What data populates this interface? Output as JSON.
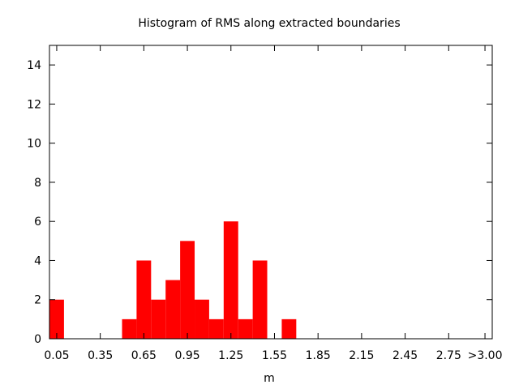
{
  "chart_data": {
    "type": "bar",
    "title": "Histogram of RMS along extracted boundaries",
    "xlabel": "m",
    "ylabel": "",
    "ylim": [
      0,
      15
    ],
    "xlim": [
      0,
      3.05
    ],
    "grid": false,
    "bin_width": 0.1,
    "bin_starts": [
      0.0,
      0.1,
      0.2,
      0.3,
      0.4,
      0.5,
      0.6,
      0.7,
      0.8,
      0.9,
      1.0,
      1.1,
      1.2,
      1.3,
      1.4,
      1.5,
      1.6,
      1.7,
      1.8,
      1.9,
      2.0,
      2.1,
      2.2,
      2.3,
      2.4,
      2.5,
      2.6,
      2.7,
      2.8,
      2.9
    ],
    "values": [
      2,
      0,
      0,
      0,
      0,
      1,
      4,
      2,
      3,
      5,
      2,
      1,
      6,
      1,
      4,
      0,
      1,
      0,
      0,
      0,
      0,
      0,
      0,
      0,
      0,
      0,
      0,
      0,
      0,
      0
    ],
    "bar_color": "#ff0000",
    "x_ticks": [
      {
        "value": 0.05,
        "label": "0.05"
      },
      {
        "value": 0.35,
        "label": "0.35"
      },
      {
        "value": 0.65,
        "label": "0.65"
      },
      {
        "value": 0.95,
        "label": "0.95"
      },
      {
        "value": 1.25,
        "label": "1.25"
      },
      {
        "value": 1.55,
        "label": "1.55"
      },
      {
        "value": 1.85,
        "label": "1.85"
      },
      {
        "value": 2.15,
        "label": "2.15"
      },
      {
        "value": 2.45,
        "label": "2.45"
      },
      {
        "value": 2.75,
        "label": "2.75"
      },
      {
        "value": 3.0,
        "label": ">3.00"
      }
    ],
    "y_ticks": [
      {
        "value": 0,
        "label": "0"
      },
      {
        "value": 2,
        "label": "2"
      },
      {
        "value": 4,
        "label": "4"
      },
      {
        "value": 6,
        "label": "6"
      },
      {
        "value": 8,
        "label": "8"
      },
      {
        "value": 10,
        "label": "10"
      },
      {
        "value": 12,
        "label": "12"
      },
      {
        "value": 14,
        "label": "14"
      }
    ]
  }
}
